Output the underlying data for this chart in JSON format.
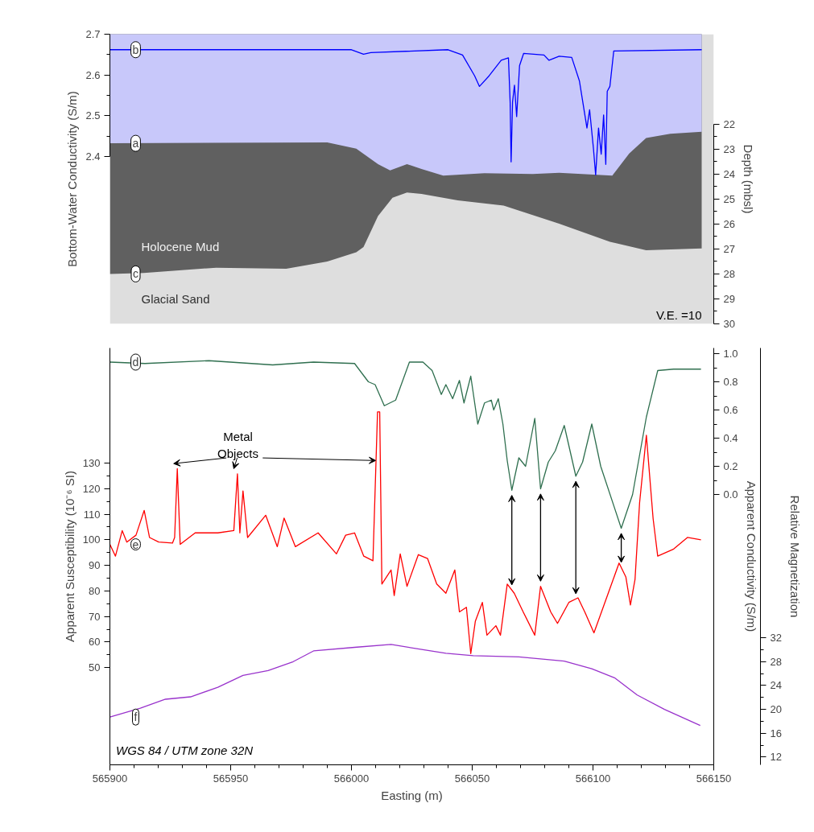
{
  "chart_data": [
    {
      "type": "line",
      "xlim": [
        565900,
        566150
      ],
      "ylim": [
        1.99,
        2.7
      ],
      "yticks": [
        2.4,
        2.5,
        2.6,
        2.7
      ],
      "ylabel": "Bottom-Water Conductivity (S/m)",
      "y2lim": [
        30,
        18.4
      ],
      "y2ticks": [
        22,
        23,
        24,
        25,
        26,
        27,
        28,
        29,
        30
      ],
      "y2label": "Depth (mbsl)",
      "tick_labels": "y",
      "bands": [
        {
          "axis": "y2",
          "from": 30,
          "to": 18.4,
          "color": "#dedede"
        }
      ],
      "series": [
        {
          "name": "c",
          "type": "area",
          "axis": "y2",
          "color": "#606060",
          "x": [
            565900,
            565914,
            565944,
            565973,
            565990,
            566002,
            566005,
            566011,
            566017,
            566023,
            566029,
            566044,
            566063,
            566086,
            566107,
            566122,
            566145
          ],
          "values": [
            28.0,
            27.96,
            27.75,
            27.79,
            27.5,
            27.13,
            26.92,
            25.68,
            24.95,
            24.74,
            24.8,
            25.05,
            25.26,
            25.99,
            26.71,
            27.05,
            26.98
          ]
        },
        {
          "name": "a",
          "type": "area",
          "axis": "y2",
          "color": "#c8c8fa",
          "x": [
            565900,
            565990,
            566002,
            566011,
            566016,
            566023,
            566029,
            566038,
            566055,
            566075,
            566086,
            566108,
            566115,
            566122,
            566132,
            566145
          ],
          "values": [
            22.77,
            22.73,
            22.98,
            23.6,
            23.85,
            23.6,
            23.8,
            24.06,
            23.97,
            24.0,
            23.95,
            24.06,
            23.18,
            22.56,
            22.39,
            22.31
          ]
        },
        {
          "name": "b",
          "axis": "y",
          "color": "#0000ff",
          "x": [
            565900,
            566000,
            566005,
            566008,
            566040,
            566046,
            566051,
            566053,
            566057,
            566062,
            566065,
            566065.7,
            566066.1,
            566066.7,
            566067.5,
            566068.4,
            566069.6,
            566071.3,
            566079.7,
            566081.8,
            566086.0,
            566091.2,
            566094.4,
            566097.5,
            566098.6,
            566100.2,
            566101.1,
            566102.3,
            566103.4,
            566104.4,
            566105.3,
            566105.9,
            566107.0,
            566108.6,
            566145
          ],
          "values": [
            2.662,
            2.662,
            2.651,
            2.655,
            2.662,
            2.649,
            2.598,
            2.572,
            2.598,
            2.636,
            2.642,
            2.534,
            2.387,
            2.534,
            2.575,
            2.498,
            2.623,
            2.653,
            2.649,
            2.636,
            2.646,
            2.643,
            2.585,
            2.47,
            2.515,
            2.419,
            2.355,
            2.47,
            2.406,
            2.502,
            2.381,
            2.56,
            2.572,
            2.659,
            2.662
          ]
        }
      ],
      "annotations": [
        "Holocene Mud",
        "Glacial Sand",
        "V.E. =10"
      ]
    },
    {
      "type": "line",
      "xlim": [
        565900,
        566150
      ],
      "xticks": [
        565900,
        565950,
        566000,
        566050,
        566100,
        566150
      ],
      "xlabel": "Easting (m)",
      "ylim": [
        12,
        175
      ],
      "yticks": [
        50,
        60,
        70,
        80,
        90,
        100,
        110,
        120,
        130
      ],
      "ylabel": "Apparent Susceptibility (10⁻⁶ SI)",
      "y2lim": [
        -1.92,
        1.04
      ],
      "y2ticks": [
        {
          "value": 0,
          "label": "0.0"
        },
        0.2,
        0.4,
        0.6,
        0.8,
        {
          "value": 1,
          "label": "1.0"
        }
      ],
      "y2label": "Apparent Conductivity (S/m)",
      "y3lim": [
        10.7,
        80.6
      ],
      "y3ticks": [
        12,
        16,
        20,
        24,
        28,
        32
      ],
      "y3label": "Relative Magnetization",
      "series": [
        {
          "name": "d",
          "axis": "y2",
          "color": "#2f6f4f",
          "x": [
            565900,
            565914.5,
            565941,
            565967.4,
            565984.3,
            566001.3,
            566007,
            566009.8,
            566013.6,
            566018.3,
            566024,
            566029.6,
            566033.4,
            566037.2,
            566039.1,
            566041.9,
            566044.7,
            566046.6,
            566049.4,
            566052.3,
            566055.1,
            566057.9,
            566058.9,
            566060.8,
            566062.7,
            566064.5,
            566066.4,
            566069.3,
            566072.1,
            566075.9,
            566078.3,
            566081.5,
            566084.4,
            566088.1,
            566092.9,
            566095.7,
            566099.5,
            566103.2,
            566111.7,
            566116.4,
            566122.1,
            566126.8,
            566133.4,
            566144.7
          ],
          "values": [
            0.94,
            0.93,
            0.95,
            0.92,
            0.94,
            0.93,
            0.8,
            0.78,
            0.63,
            0.67,
            0.94,
            0.94,
            0.88,
            0.71,
            0.78,
            0.68,
            0.81,
            0.65,
            0.84,
            0.5,
            0.65,
            0.67,
            0.6,
            0.68,
            0.5,
            0.24,
            0.03,
            0.26,
            0.2,
            0.54,
            0.04,
            0.23,
            0.31,
            0.49,
            0.13,
            0.23,
            0.5,
            0.2,
            -0.24,
            0.0,
            0.55,
            0.88,
            0.89,
            0.89
          ]
        },
        {
          "name": "e",
          "axis": "y",
          "color": "#ff0000",
          "x": [
            565900,
            565902.3,
            565905.1,
            565907,
            565910.8,
            565914.2,
            565916.4,
            565920.2,
            565925.9,
            565926.8,
            565927.9,
            565929.1,
            565935.3,
            565944.7,
            565951.3,
            565952.8,
            565953.8,
            565955.1,
            565957,
            565964.5,
            565969.3,
            565972.1,
            565976.8,
            565986.2,
            565993.8,
            565997.6,
            566001.3,
            566005.1,
            566008.9,
            566010.8,
            566011.7,
            566012.6,
            566016.4,
            566017.7,
            566020.2,
            566023,
            566027.7,
            566031.5,
            566035.3,
            566039.1,
            566042.8,
            566044.7,
            566047.6,
            566049.4,
            566051.3,
            566054.2,
            566056.1,
            566059.8,
            566061.7,
            566064.5,
            566067.4,
            566071.1,
            566075.9,
            566078.3,
            566082.5,
            566085.3,
            566090,
            566093.8,
            566096.6,
            566100.4,
            566107,
            566110.8,
            566113.6,
            566115.5,
            566117.4,
            566119.3,
            566122.1,
            566124.9,
            566126.8,
            566133.4,
            566139.1,
            566144.7
          ],
          "values": [
            98.2,
            93.6,
            103.6,
            99.1,
            101.8,
            111.5,
            100.9,
            99.1,
            98.7,
            100.9,
            127.8,
            98.2,
            102.7,
            102.7,
            103.6,
            125.8,
            102.7,
            119.1,
            100.9,
            109.6,
            97.3,
            108.5,
            97.3,
            102.7,
            94.5,
            101.8,
            102.7,
            93.6,
            91.8,
            150,
            150,
            82.7,
            88.2,
            78.2,
            94.5,
            81.8,
            94.2,
            92.7,
            82.7,
            79.1,
            88.2,
            71.8,
            73.6,
            55.5,
            68.2,
            75.5,
            62.7,
            66.4,
            62.7,
            82.7,
            79.1,
            71.8,
            62.7,
            81.8,
            71.8,
            67.3,
            75.5,
            77.3,
            71.8,
            63.6,
            80.9,
            90.9,
            85.5,
            74.5,
            84.5,
            114.5,
            140.9,
            108.2,
            93.6,
            96.4,
            100.9,
            100
          ]
        },
        {
          "name": "f",
          "axis": "y3",
          "color": "#9933cc",
          "x": [
            565900,
            565912.6,
            565923,
            565933.4,
            565944.7,
            565955.1,
            565965.5,
            565975.9,
            565984.3,
            566001.3,
            566016.4,
            566029.6,
            566039.1,
            566050.4,
            566069.3,
            566088.1,
            566099.5,
            566108.9,
            566118.3,
            566129.6,
            566144.4
          ],
          "values": [
            18.7,
            20.2,
            21.7,
            22.1,
            23.7,
            25.7,
            26.5,
            28.0,
            29.8,
            30.4,
            30.9,
            30.0,
            29.4,
            29.0,
            28.8,
            28.1,
            26.8,
            25.3,
            22.4,
            20.0,
            17.3
          ]
        }
      ],
      "annotations": [
        {
          "text": "Metal Objects",
          "x": 566010,
          "y": 131
        },
        "WGS 84 / UTM zone 32N"
      ]
    }
  ]
}
